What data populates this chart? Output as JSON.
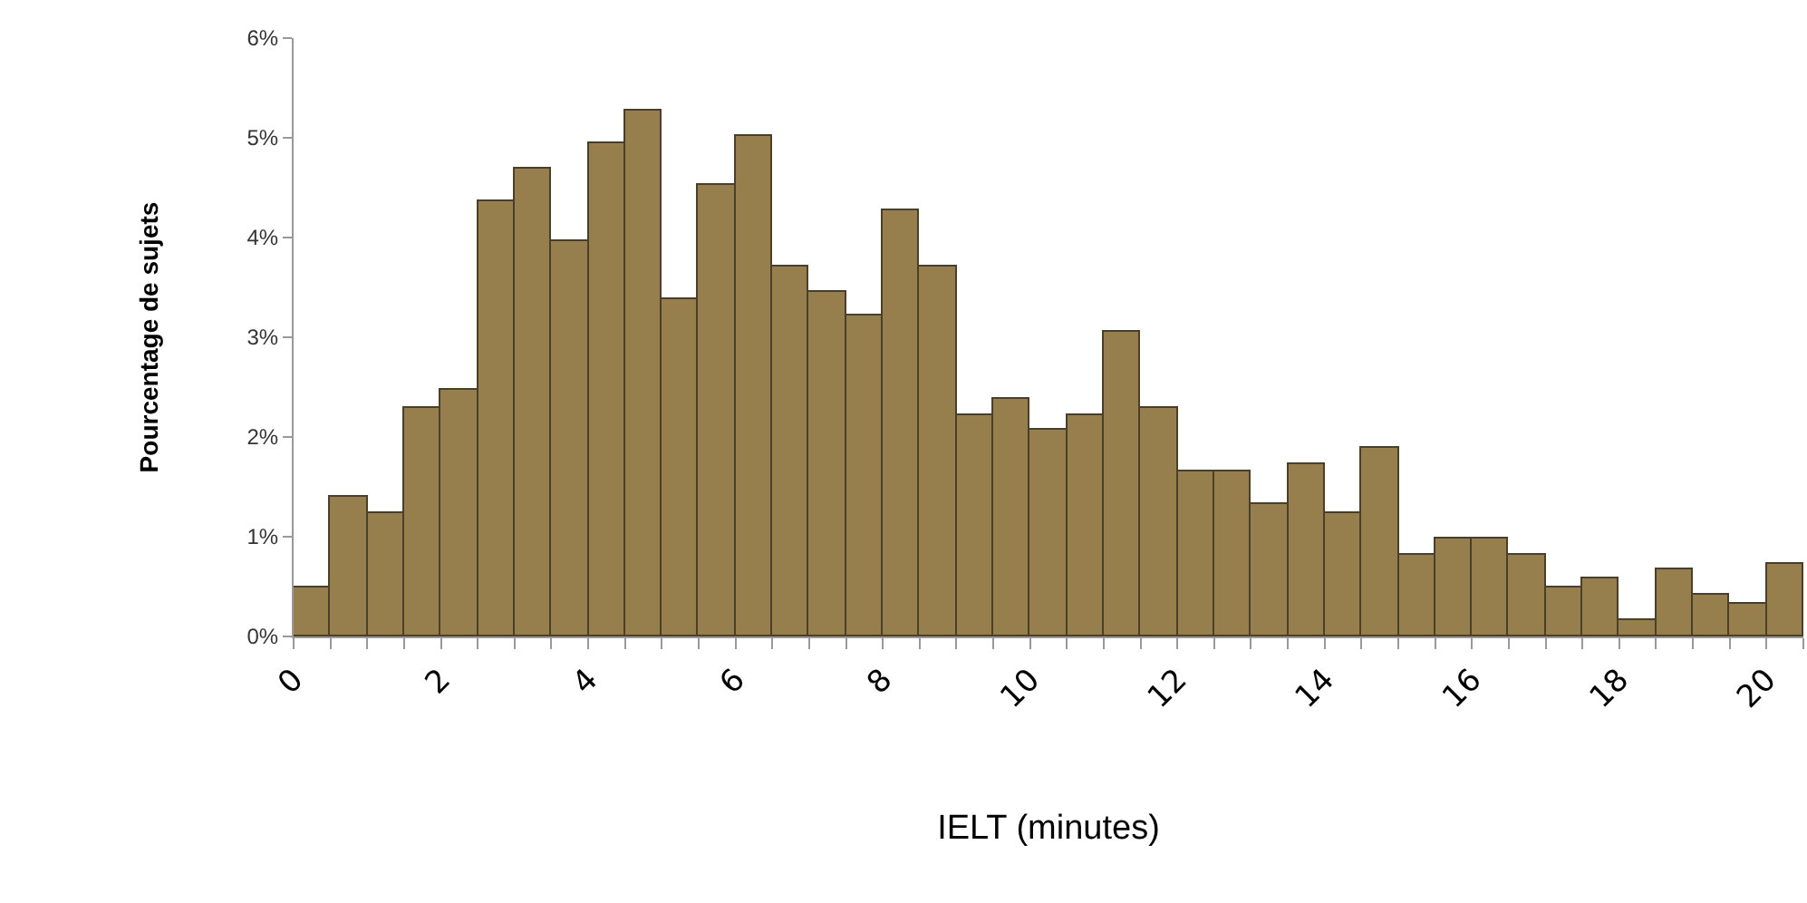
{
  "chart_data": {
    "type": "histogram",
    "xlabel": "IELT (minutes)",
    "ylabel": "Pourcentage de sujets",
    "bins": [
      0,
      0.5,
      1,
      1.5,
      2,
      2.5,
      3,
      3.5,
      4,
      4.5,
      5,
      5.5,
      6,
      6.5,
      7,
      7.5,
      8,
      8.5,
      9,
      9.5,
      10,
      10.5,
      11,
      11.5,
      12,
      12.5,
      13,
      13.5,
      14,
      14.5,
      15,
      15.5,
      16,
      16.5,
      17,
      17.5,
      18,
      18.5,
      19,
      19.5,
      20,
      20.5
    ],
    "values": [
      0.5,
      1.4,
      1.24,
      2.3,
      2.47,
      4.37,
      4.7,
      3.96,
      4.95,
      5.27,
      3.39,
      4.53,
      5.02,
      3.71,
      3.45,
      3.22,
      4.28,
      3.71,
      2.22,
      2.39,
      2.07,
      2.22,
      3.05,
      2.3,
      1.65,
      1.65,
      1.32,
      1.73,
      1.24,
      1.89,
      0.82,
      0.99,
      0.99,
      0.82,
      0.5,
      0.58,
      0.16,
      0.67,
      0.41,
      0.32,
      0.73
    ],
    "color": "#977f4d",
    "xlim": [
      0,
      20.5
    ],
    "xticks": [
      0,
      {
        "value": 0.5,
        "label": null
      },
      {
        "value": 1,
        "label": null
      },
      {
        "value": 1.5,
        "label": null
      },
      2,
      {
        "value": 2.5,
        "label": null
      },
      {
        "value": 3,
        "label": null
      },
      {
        "value": 3.5,
        "label": null
      },
      4,
      {
        "value": 4.5,
        "label": null
      },
      {
        "value": 5,
        "label": null
      },
      {
        "value": 5.5,
        "label": null
      },
      6,
      {
        "value": 6.5,
        "label": null
      },
      {
        "value": 7,
        "label": null
      },
      {
        "value": 7.5,
        "label": null
      },
      8,
      {
        "value": 8.5,
        "label": null
      },
      {
        "value": 9,
        "label": null
      },
      {
        "value": 9.5,
        "label": null
      },
      10,
      {
        "value": 10.5,
        "label": null
      },
      {
        "value": 11,
        "label": null
      },
      {
        "value": 11.5,
        "label": null
      },
      12,
      {
        "value": 12.5,
        "label": null
      },
      {
        "value": 13,
        "label": null
      },
      {
        "value": 13.5,
        "label": null
      },
      14,
      {
        "value": 14.5,
        "label": null
      },
      {
        "value": 15,
        "label": null
      },
      {
        "value": 15.5,
        "label": null
      },
      16,
      {
        "value": 16.5,
        "label": null
      },
      {
        "value": 17,
        "label": null
      },
      {
        "value": 17.5,
        "label": null
      },
      18,
      {
        "value": 18.5,
        "label": null
      },
      {
        "value": 19,
        "label": null
      },
      {
        "value": 19.5,
        "label": null
      },
      20,
      {
        "value": 20.5,
        "label": null
      }
    ],
    "ylim": [
      0,
      6
    ],
    "yticks": [
      {
        "value": 0,
        "label": "0%"
      },
      {
        "value": 1,
        "label": "1%"
      },
      {
        "value": 2,
        "label": "2%"
      },
      {
        "value": 3,
        "label": "3%"
      },
      {
        "value": 4,
        "label": "4%"
      },
      {
        "value": 5,
        "label": "5%"
      },
      {
        "value": 6,
        "label": "6%"
      }
    ],
    "legend": false
  }
}
